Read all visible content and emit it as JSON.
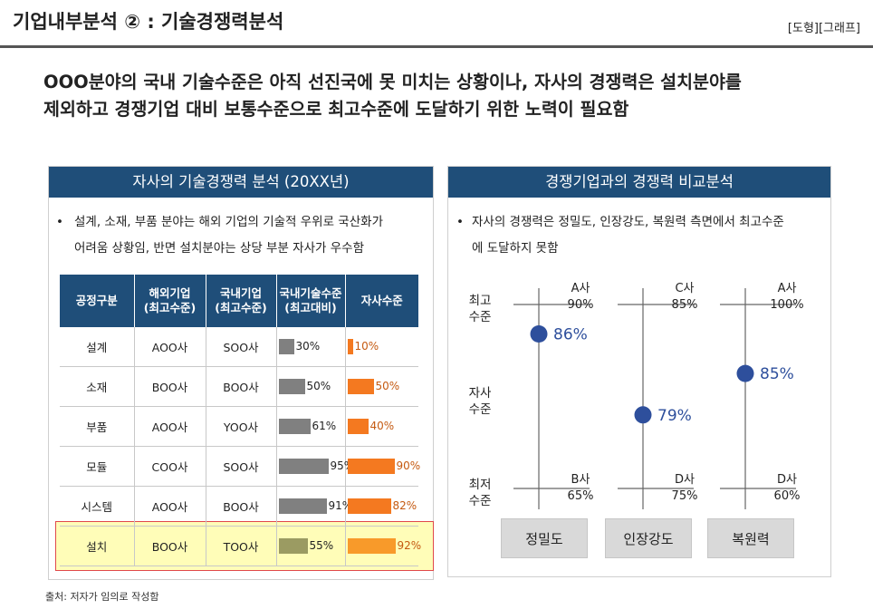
{
  "header": {
    "title": "기업내부분석 ② : 기술경쟁력분석",
    "tag": "[도형][그래프]"
  },
  "headline": {
    "line1": "OOO분야의 국내 기술수준은 아직 선진국에 못 미치는 상황이나, 자사의 경쟁력은 설치분야를",
    "line2": "제외하고 경쟁기업 대비 보통수준으로 최고수준에 도달하기 위한 노력이 필요함"
  },
  "left_panel": {
    "title": "자사의 기술경쟁력 분석 (20XX년)",
    "bullet_line1": "설계, 소재, 부품 분야는 해외 기업의 기술적 우위로 국산화가",
    "bullet_line2": "어려움 상황임, 반면 설치분야는 상당 부분 자사가 우수함",
    "table": {
      "headers": [
        [
          "공정구분"
        ],
        [
          "해외기업",
          "(최고수준)"
        ],
        [
          "국내기업",
          "(최고수준)"
        ],
        [
          "국내기술수준",
          "(최고대비)"
        ],
        [
          "자사수준"
        ]
      ],
      "rows": [
        {
          "process": "설계",
          "foreign": "AOO사",
          "domestic": "SOO사"
        },
        {
          "process": "소재",
          "foreign": "BOO사",
          "domestic": "BOO사"
        },
        {
          "process": "부품",
          "foreign": "AOO사",
          "domestic": "YOO사"
        },
        {
          "process": "모듈",
          "foreign": "COO사",
          "domestic": "SOO사"
        },
        {
          "process": "시스템",
          "foreign": "AOO사",
          "domestic": "BOO사"
        },
        {
          "process": "설치",
          "foreign": "BOO사",
          "domestic": "TOO사"
        }
      ]
    }
  },
  "chart_data": [
    {
      "type": "bar",
      "title": "국내기술수준 (최고대비)",
      "categories": [
        "설계",
        "소재",
        "부품",
        "모듈",
        "시스템",
        "설치"
      ],
      "series": [
        {
          "name": "국내기술수준(최고대비)",
          "values": [
            30,
            50,
            61,
            95,
            91,
            55
          ],
          "labels": [
            "30%",
            "50%",
            "61%",
            "95%",
            "91%",
            "55%"
          ],
          "color": "#808080"
        },
        {
          "name": "자사수준",
          "values": [
            10,
            50,
            40,
            90,
            82,
            92
          ],
          "labels": [
            "10%",
            "50%",
            "40%",
            "90%",
            "82%",
            "92%"
          ],
          "color": "#f47920"
        }
      ],
      "highlight": "설치"
    },
    {
      "type": "scatter",
      "title": "경쟁기업과의 경쟁력 비교분석",
      "ylabels": {
        "top": "최고\n수준",
        "mid": "자사\n수준",
        "bottom": "최저\n수준"
      },
      "categories": [
        "정밀도",
        "인장강도",
        "복원력"
      ],
      "columns": [
        {
          "name": "정밀도",
          "top_company": "A사",
          "top_value": 90,
          "top_label": "90%",
          "bottom_company": "B사",
          "bottom_value": 65,
          "bottom_label": "65%",
          "own_value": 86,
          "own_label": "86%"
        },
        {
          "name": "인장강도",
          "top_company": "C사",
          "top_value": 85,
          "top_label": "85%",
          "bottom_company": "D사",
          "bottom_value": 75,
          "bottom_label": "75%",
          "own_value": 79,
          "own_label": "79%"
        },
        {
          "name": "복원력",
          "top_company": "A사",
          "top_value": 100,
          "top_label": "100%",
          "bottom_company": "D사",
          "bottom_value": 60,
          "bottom_label": "60%",
          "own_value": 85,
          "own_label": "85%"
        }
      ],
      "point_color": "#2e4f9c"
    }
  ],
  "right_panel": {
    "title": "경쟁기업과의 경쟁력 비교분석",
    "bullet_line1": "자사의 경쟁력은 정밀도, 인장강도, 복원력 측면에서 최고수준",
    "bullet_line2": "에 도달하지 못함"
  },
  "source": "출처: 저자가 임의로 작성함"
}
